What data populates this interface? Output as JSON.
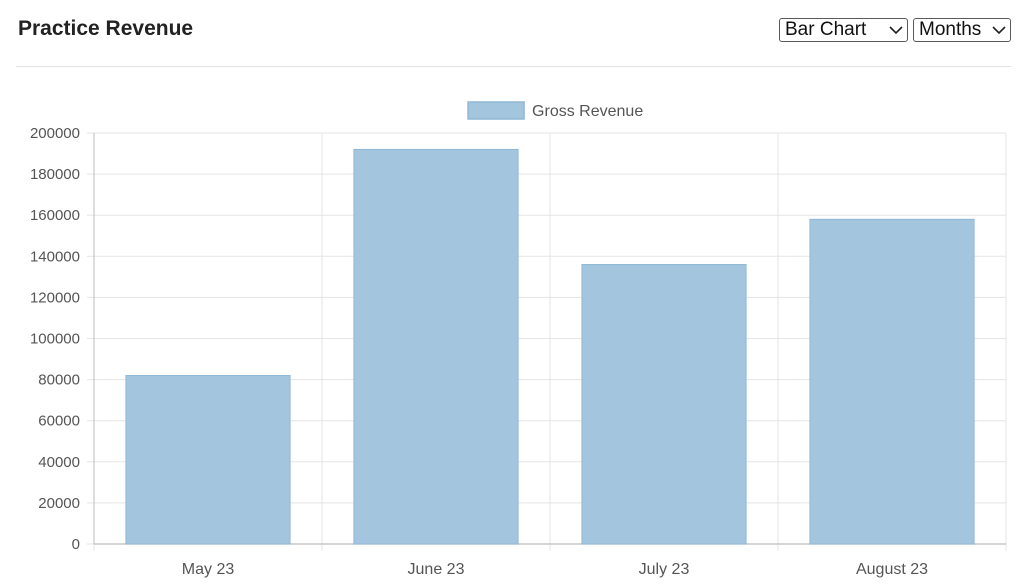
{
  "header": {
    "title": "Practice Revenue",
    "chart_type_select": "Bar Chart",
    "period_select": "Months"
  },
  "icons": {
    "dropdown": "chevron-down-icon"
  },
  "colors": {
    "bar_fill": "#a3c6de",
    "bar_stroke": "#8fb8d6",
    "grid": "#e5e5e5",
    "axis": "#bdbdbd"
  },
  "chart_data": {
    "type": "bar",
    "title": "",
    "xlabel": "",
    "ylabel": "",
    "categories": [
      "May 23",
      "June 23",
      "July 23",
      "August 23"
    ],
    "series": [
      {
        "name": "Gross Revenue",
        "values": [
          82000,
          192000,
          136000,
          158000
        ]
      }
    ],
    "ylim": [
      0,
      200000
    ],
    "yticks": [
      0,
      20000,
      40000,
      60000,
      80000,
      100000,
      120000,
      140000,
      160000,
      180000,
      200000
    ],
    "grid": true,
    "legend": "top-center"
  }
}
